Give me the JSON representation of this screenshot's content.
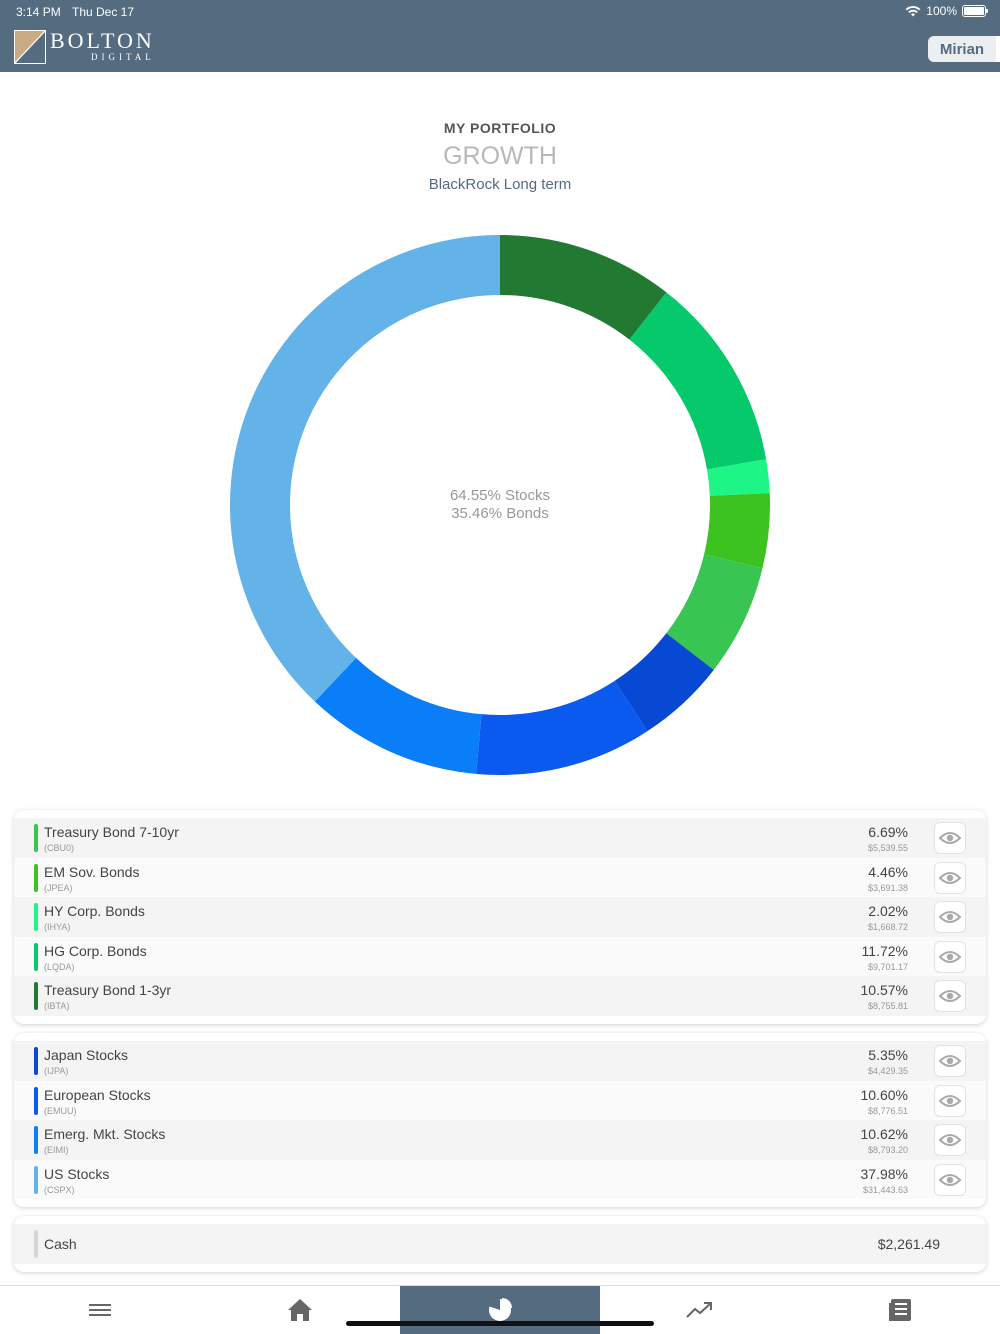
{
  "status_bar": {
    "time": "3:14 PM",
    "date": "Thu Dec 17",
    "battery": "100%"
  },
  "header": {
    "logo_word": "BOLTON",
    "logo_sub": "DIGITAL",
    "user_name": "Mirian"
  },
  "portfolio": {
    "heading": "MY PORTFOLIO",
    "strategy": "GROWTH",
    "fund": "BlackRock Long term"
  },
  "chart_data": {
    "type": "pie",
    "center_labels": [
      "64.55% Stocks",
      "35.46% Bonds"
    ],
    "slices": [
      {
        "label": "Treasury Bond 1-3yr",
        "value": 10.57,
        "color": "#227a32"
      },
      {
        "label": "HG Corp. Bonds",
        "value": 11.72,
        "color": "#05c96a"
      },
      {
        "label": "HY Corp. Bonds",
        "value": 2.02,
        "color": "#1ef587"
      },
      {
        "label": "EM Sov. Bonds",
        "value": 4.46,
        "color": "#3cc31f"
      },
      {
        "label": "Treasury Bond 7-10yr",
        "value": 6.69,
        "color": "#39c552"
      },
      {
        "label": "Japan Stocks",
        "value": 5.35,
        "color": "#0749d2"
      },
      {
        "label": "European Stocks",
        "value": 10.6,
        "color": "#0a5aef"
      },
      {
        "label": "Emerg. Mkt. Stocks",
        "value": 10.62,
        "color": "#0a7ef8"
      },
      {
        "label": "US Stocks",
        "value": 37.98,
        "color": "#63b3e8"
      }
    ]
  },
  "bonds": [
    {
      "name": "Treasury Bond 7-10yr",
      "ticker": "(CBU0)",
      "pct": "6.69%",
      "amount": "$5,539.55",
      "color": "#39c552"
    },
    {
      "name": "EM Sov. Bonds",
      "ticker": "(JPEA)",
      "pct": "4.46%",
      "amount": "$3,691.38",
      "color": "#3cc31f"
    },
    {
      "name": "HY Corp. Bonds",
      "ticker": "(IHYA)",
      "pct": "2.02%",
      "amount": "$1,668.72",
      "color": "#1ef587"
    },
    {
      "name": "HG Corp. Bonds",
      "ticker": "(LQDA)",
      "pct": "11.72%",
      "amount": "$9,701.17",
      "color": "#05c96a"
    },
    {
      "name": "Treasury Bond 1-3yr",
      "ticker": "(IBTA)",
      "pct": "10.57%",
      "amount": "$8,755.81",
      "color": "#227a32"
    }
  ],
  "stocks": [
    {
      "name": "Japan Stocks",
      "ticker": "(IJPA)",
      "pct": "5.35%",
      "amount": "$4,429.35",
      "color": "#0749d2"
    },
    {
      "name": "European Stocks",
      "ticker": "(EMUU)",
      "pct": "10.60%",
      "amount": "$8,776.51",
      "color": "#0a5aef"
    },
    {
      "name": "Emerg. Mkt. Stocks",
      "ticker": "(EIMI)",
      "pct": "10.62%",
      "amount": "$8,793.20",
      "color": "#0a7ef8"
    },
    {
      "name": "US Stocks",
      "ticker": "(CSPX)",
      "pct": "37.98%",
      "amount": "$31,443.63",
      "color": "#63b3e8"
    }
  ],
  "cash": {
    "label": "Cash",
    "amount": "$2,261.49",
    "color": "#d6d6d6"
  },
  "nav": [
    {
      "icon": "menu-icon"
    },
    {
      "icon": "home-icon"
    },
    {
      "icon": "pie-chart-icon",
      "active": true
    },
    {
      "icon": "trending-up-icon"
    },
    {
      "icon": "document-icon"
    }
  ]
}
